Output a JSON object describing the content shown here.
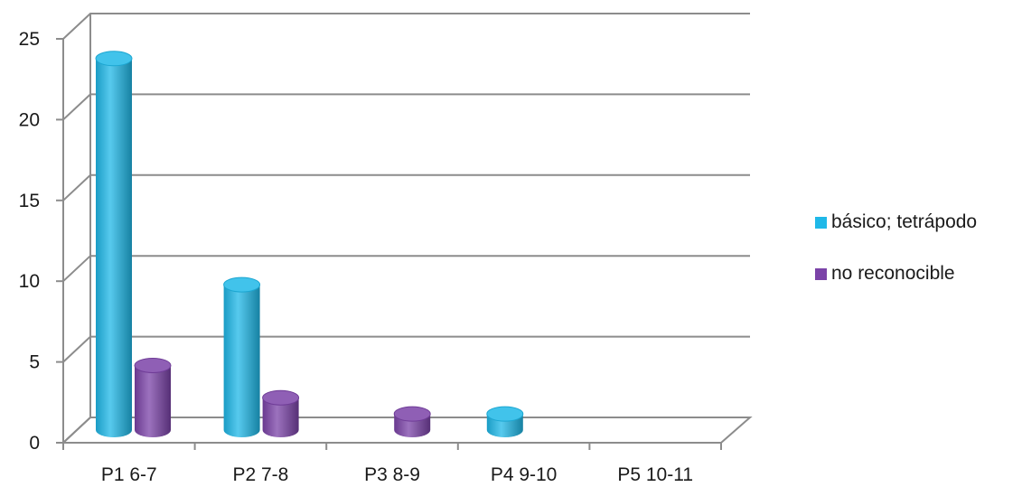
{
  "chart_data": {
    "type": "bar",
    "style": "3d-cylinder",
    "categories": [
      "P1 6-7",
      "P2 7-8",
      "P3 8-9",
      "P4 9-10",
      "P5 10-11"
    ],
    "series": [
      {
        "name": "básico; tetrápodo",
        "color": "#1fb8e8",
        "values": [
          23,
          9,
          0,
          1,
          0
        ]
      },
      {
        "name": "no reconocible",
        "color": "#7b43a8",
        "values": [
          4,
          2,
          1,
          0,
          0
        ]
      }
    ],
    "yticks": [
      "0",
      "5",
      "10",
      "15",
      "20",
      "25"
    ],
    "ylim": [
      0,
      25
    ],
    "grid": true,
    "legend": "right"
  }
}
